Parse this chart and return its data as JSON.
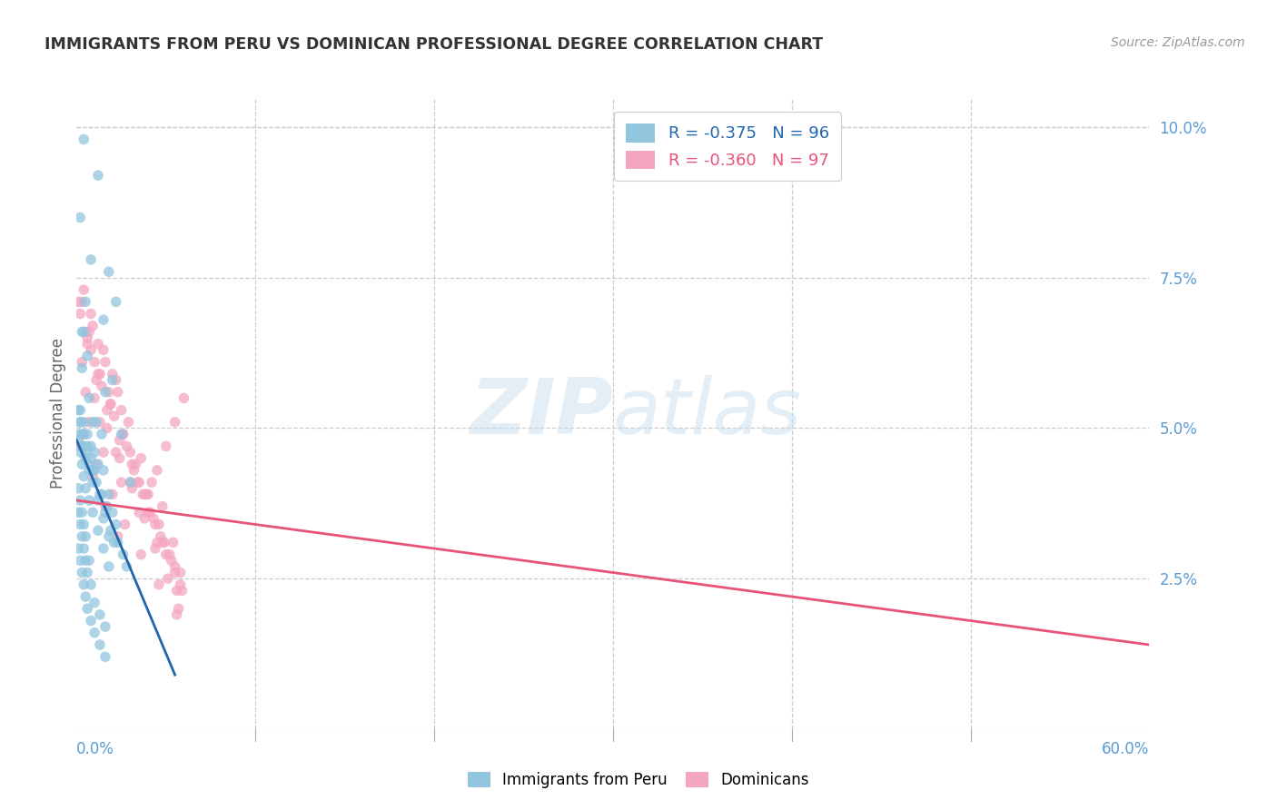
{
  "title": "IMMIGRANTS FROM PERU VS DOMINICAN PROFESSIONAL DEGREE CORRELATION CHART",
  "source": "Source: ZipAtlas.com",
  "ylabel": "Professional Degree",
  "watermark": "ZIPatlas",
  "legend_blue": {
    "R": "-0.375",
    "N": "96",
    "label": "Immigrants from Peru"
  },
  "legend_pink": {
    "R": "-0.360",
    "N": "97",
    "label": "Dominicans"
  },
  "xlim": [
    0.0,
    0.6
  ],
  "ylim": [
    0.0,
    0.105
  ],
  "ytick_positions": [
    0.0,
    0.025,
    0.05,
    0.075,
    0.1
  ],
  "ytick_labels": [
    "",
    "2.5%",
    "5.0%",
    "7.5%",
    "10.0%"
  ],
  "xtick_left_label": "0.0%",
  "xtick_right_label": "60.0%",
  "blue_color": "#92c5de",
  "pink_color": "#f4a6c0",
  "blue_line_color": "#2166ac",
  "pink_line_color": "#e8537a",
  "title_color": "#333333",
  "source_color": "#999999",
  "axis_tick_color": "#5b9bd5",
  "grid_color": "#cccccc",
  "background_color": "#ffffff",
  "blue_scatter_x": [
    0.004,
    0.012,
    0.002,
    0.008,
    0.018,
    0.015,
    0.022,
    0.006,
    0.004,
    0.003,
    0.007,
    0.009,
    0.011,
    0.014,
    0.016,
    0.02,
    0.025,
    0.03,
    0.005,
    0.003,
    0.002,
    0.004,
    0.006,
    0.008,
    0.01,
    0.012,
    0.015,
    0.018,
    0.02,
    0.022,
    0.001,
    0.003,
    0.005,
    0.007,
    0.009,
    0.011,
    0.013,
    0.016,
    0.019,
    0.021,
    0.002,
    0.004,
    0.006,
    0.008,
    0.01,
    0.014,
    0.017,
    0.023,
    0.026,
    0.028,
    0.001,
    0.002,
    0.003,
    0.004,
    0.005,
    0.007,
    0.009,
    0.012,
    0.015,
    0.018,
    0.001,
    0.002,
    0.003,
    0.004,
    0.005,
    0.007,
    0.009,
    0.012,
    0.015,
    0.018,
    0.001,
    0.002,
    0.003,
    0.004,
    0.005,
    0.006,
    0.008,
    0.01,
    0.013,
    0.016,
    0.001,
    0.002,
    0.003,
    0.004,
    0.005,
    0.006,
    0.008,
    0.01,
    0.013,
    0.016,
    0.001,
    0.002,
    0.003,
    0.004,
    0.005,
    0.007
  ],
  "blue_scatter_y": [
    0.098,
    0.092,
    0.085,
    0.078,
    0.076,
    0.068,
    0.071,
    0.062,
    0.066,
    0.06,
    0.055,
    0.051,
    0.051,
    0.049,
    0.056,
    0.058,
    0.049,
    0.041,
    0.071,
    0.066,
    0.053,
    0.051,
    0.049,
    0.047,
    0.046,
    0.044,
    0.043,
    0.039,
    0.036,
    0.034,
    0.049,
    0.047,
    0.046,
    0.044,
    0.043,
    0.041,
    0.039,
    0.036,
    0.033,
    0.031,
    0.051,
    0.049,
    0.047,
    0.045,
    0.043,
    0.039,
    0.037,
    0.031,
    0.029,
    0.027,
    0.053,
    0.051,
    0.049,
    0.047,
    0.045,
    0.043,
    0.041,
    0.038,
    0.035,
    0.032,
    0.048,
    0.046,
    0.044,
    0.042,
    0.04,
    0.038,
    0.036,
    0.033,
    0.03,
    0.027,
    0.036,
    0.034,
    0.032,
    0.03,
    0.028,
    0.026,
    0.024,
    0.021,
    0.019,
    0.017,
    0.03,
    0.028,
    0.026,
    0.024,
    0.022,
    0.02,
    0.018,
    0.016,
    0.014,
    0.012,
    0.04,
    0.038,
    0.036,
    0.034,
    0.032,
    0.028
  ],
  "pink_scatter_x": [
    0.005,
    0.01,
    0.012,
    0.018,
    0.02,
    0.025,
    0.008,
    0.015,
    0.022,
    0.03,
    0.035,
    0.04,
    0.045,
    0.05,
    0.055,
    0.06,
    0.003,
    0.007,
    0.013,
    0.019,
    0.026,
    0.032,
    0.038,
    0.044,
    0.05,
    0.056,
    0.004,
    0.009,
    0.016,
    0.023,
    0.029,
    0.036,
    0.042,
    0.048,
    0.054,
    0.006,
    0.011,
    0.017,
    0.024,
    0.031,
    0.037,
    0.043,
    0.049,
    0.055,
    0.002,
    0.008,
    0.014,
    0.021,
    0.028,
    0.034,
    0.041,
    0.047,
    0.053,
    0.059,
    0.001,
    0.006,
    0.012,
    0.019,
    0.026,
    0.033,
    0.039,
    0.046,
    0.052,
    0.058,
    0.003,
    0.01,
    0.017,
    0.024,
    0.031,
    0.038,
    0.044,
    0.051,
    0.057,
    0.005,
    0.013,
    0.022,
    0.03,
    0.04,
    0.048,
    0.058,
    0.007,
    0.015,
    0.025,
    0.035,
    0.045,
    0.055,
    0.004,
    0.011,
    0.02,
    0.027,
    0.036,
    0.046,
    0.056,
    0.002,
    0.009,
    0.016,
    0.023
  ],
  "pink_scatter_y": [
    0.066,
    0.061,
    0.064,
    0.056,
    0.059,
    0.053,
    0.069,
    0.063,
    0.058,
    0.046,
    0.041,
    0.039,
    0.043,
    0.047,
    0.051,
    0.055,
    0.071,
    0.066,
    0.059,
    0.054,
    0.049,
    0.043,
    0.039,
    0.034,
    0.029,
    0.023,
    0.073,
    0.067,
    0.061,
    0.056,
    0.051,
    0.045,
    0.041,
    0.037,
    0.031,
    0.064,
    0.058,
    0.053,
    0.048,
    0.044,
    0.039,
    0.035,
    0.031,
    0.027,
    0.069,
    0.063,
    0.057,
    0.052,
    0.047,
    0.041,
    0.036,
    0.032,
    0.028,
    0.023,
    0.071,
    0.065,
    0.059,
    0.054,
    0.049,
    0.044,
    0.039,
    0.034,
    0.029,
    0.024,
    0.061,
    0.055,
    0.05,
    0.045,
    0.04,
    0.035,
    0.03,
    0.025,
    0.02,
    0.056,
    0.051,
    0.046,
    0.041,
    0.036,
    0.031,
    0.026,
    0.051,
    0.046,
    0.041,
    0.036,
    0.031,
    0.026,
    0.049,
    0.044,
    0.039,
    0.034,
    0.029,
    0.024,
    0.019,
    0.047,
    0.042,
    0.037,
    0.032
  ],
  "blue_line_x": [
    0.0,
    0.055
  ],
  "blue_line_y": [
    0.048,
    0.009
  ],
  "pink_line_x": [
    0.0,
    0.6
  ],
  "pink_line_y": [
    0.038,
    0.014
  ]
}
